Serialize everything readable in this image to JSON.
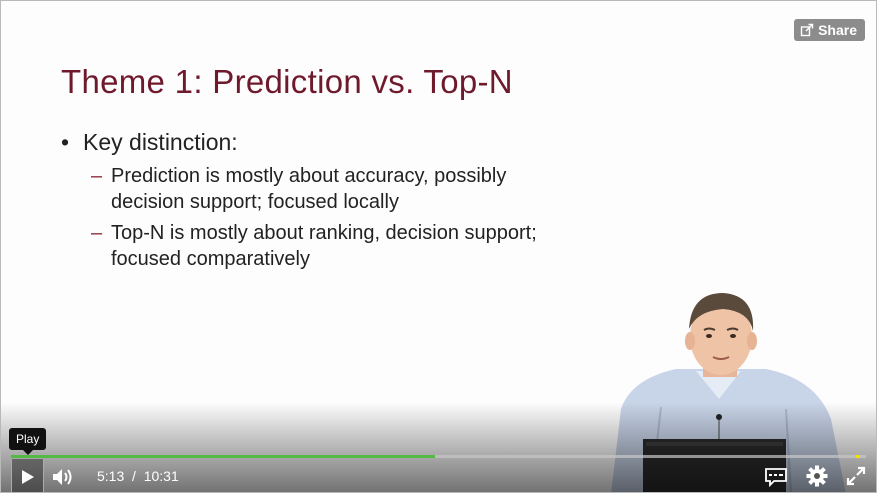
{
  "slide": {
    "title": "Theme 1:  Prediction vs. Top-N",
    "bullet": "Key distinction:",
    "subpoints": [
      {
        "dash": "–",
        "lines": [
          "Prediction is mostly about accuracy, possibly",
          "decision support; focused locally"
        ]
      },
      {
        "dash": "–",
        "lines": [
          "Top-N is mostly about ranking, decision support;",
          "focused comparatively"
        ]
      }
    ]
  },
  "share": {
    "label": "Share",
    "icon": "share-icon"
  },
  "player": {
    "tooltip": "Play",
    "current_time": "5:13",
    "separator": "/",
    "duration": "10:31",
    "progress_fraction": 0.496,
    "icons": {
      "play": "play-icon",
      "volume": "volume-icon",
      "captions": "captions-icon",
      "settings": "gear-icon",
      "fullscreen": "fullscreen-icon"
    },
    "colors": {
      "title": "#6e1a2c",
      "progress": "#55b946",
      "marker": "#f4e100"
    }
  }
}
